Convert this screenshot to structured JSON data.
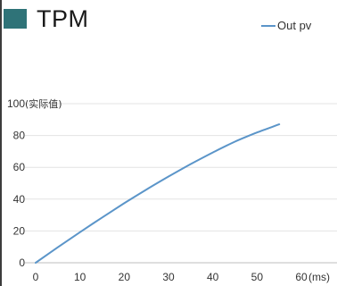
{
  "header": {
    "title": "TPM"
  },
  "colors": {
    "accent": "#2f7378",
    "series": "#5b95c9",
    "grid": "#e3e3e3"
  },
  "chart_data": {
    "type": "line",
    "title": "TPM",
    "xlabel": "(ms)",
    "ylabel": "(实际值)",
    "xlim": [
      0,
      60
    ],
    "ylim": [
      0,
      100
    ],
    "x_ticks": [
      0,
      10,
      20,
      30,
      40,
      50,
      60
    ],
    "y_ticks": [
      0,
      20,
      40,
      60,
      80,
      100
    ],
    "grid": true,
    "legend_position": "top-right",
    "series": [
      {
        "name": "Out pv",
        "x": [
          0,
          5,
          10,
          15,
          20,
          25,
          30,
          35,
          40,
          45,
          50,
          55
        ],
        "y": [
          0,
          9.7,
          19.2,
          28.4,
          37.4,
          46.0,
          54.2,
          62.0,
          69.3,
          76.1,
          81.9,
          87.0
        ]
      }
    ]
  }
}
